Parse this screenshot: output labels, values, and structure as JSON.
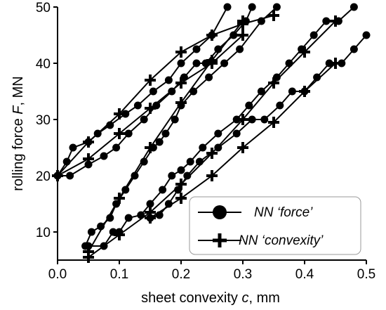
{
  "chart_data": {
    "type": "line",
    "xlabel_prefix": "sheet convexity ",
    "xlabel_var": "c",
    "xlabel_suffix": ", mm",
    "ylabel_prefix": "rolling force ",
    "ylabel_var": "F",
    "ylabel_suffix": ", MN",
    "xlim": [
      0.0,
      0.5
    ],
    "ylim": [
      5,
      50
    ],
    "xticks": [
      0.0,
      0.1,
      0.2,
      0.3,
      0.4,
      0.5
    ],
    "xtick_labels": [
      "0.0",
      "0.1",
      "0.2",
      "0.3",
      "0.4",
      "0.5"
    ],
    "yticks": [
      10,
      20,
      30,
      40,
      50
    ],
    "ytick_labels": [
      "10",
      "20",
      "30",
      "40",
      "50"
    ],
    "grid": false,
    "legend_position": "bottom-right",
    "series": [
      {
        "name": "NN ‘force’",
        "marker": "circle",
        "x": [
          0.0,
          0.015,
          0.025,
          0.05,
          0.065,
          0.085,
          0.11,
          0.13,
          0.155,
          0.18,
          0.2,
          0.225,
          0.25,
          0.275
        ],
        "y": [
          20,
          22.5,
          25,
          26,
          27.5,
          29,
          31,
          32.5,
          35,
          37,
          40,
          42.5,
          45,
          50
        ]
      },
      {
        "name": "NN ‘force’",
        "marker": "circle",
        "x": [
          0.0,
          0.02,
          0.05,
          0.075,
          0.095,
          0.115,
          0.14,
          0.16,
          0.185,
          0.205,
          0.225,
          0.24,
          0.26,
          0.285,
          0.305,
          0.315
        ],
        "y": [
          20,
          20,
          22,
          23.5,
          25,
          27.5,
          30,
          32.5,
          35,
          37.5,
          40,
          40,
          42.5,
          45,
          47.5,
          50
        ]
      },
      {
        "name": "NN ‘force’",
        "marker": "circle",
        "x": [
          0.045,
          0.055,
          0.07,
          0.085,
          0.095,
          0.11,
          0.125,
          0.14,
          0.155,
          0.165,
          0.175,
          0.19,
          0.2,
          0.22,
          0.245,
          0.27,
          0.295,
          0.33,
          0.355
        ],
        "y": [
          7.5,
          10,
          11,
          12.5,
          15,
          17.5,
          20,
          22.5,
          25,
          26,
          27.5,
          30,
          32.5,
          35,
          37.5,
          40,
          42.5,
          47.5,
          50
        ]
      },
      {
        "name": "NN ‘force’",
        "marker": "circle",
        "x": [
          0.05,
          0.075,
          0.09,
          0.1,
          0.115,
          0.135,
          0.15,
          0.17,
          0.185,
          0.2,
          0.215,
          0.235,
          0.26,
          0.29,
          0.31,
          0.33,
          0.355,
          0.375,
          0.395,
          0.415,
          0.435,
          0.455,
          0.48
        ],
        "y": [
          7.5,
          7.5,
          10,
          10,
          12.5,
          13,
          15,
          17.5,
          20,
          21,
          22.5,
          25,
          27.5,
          30,
          32.5,
          35,
          37.5,
          40,
          42.5,
          45,
          47.5,
          47.5,
          50
        ]
      },
      {
        "name": "NN ‘force’",
        "marker": "circle",
        "x": [
          0.15,
          0.165,
          0.18,
          0.195,
          0.21,
          0.23,
          0.26,
          0.29,
          0.315,
          0.335,
          0.36,
          0.38,
          0.4,
          0.42,
          0.44,
          0.46,
          0.48,
          0.5
        ],
        "y": [
          12.5,
          13,
          15,
          17.5,
          20,
          22.5,
          25,
          27.5,
          30,
          30,
          32.5,
          35,
          35,
          37.5,
          40,
          40,
          42.5,
          45
        ]
      },
      {
        "name": "NN ‘convexity’",
        "marker": "plus",
        "x": [
          0.0,
          0.05,
          0.1,
          0.15,
          0.2,
          0.25,
          0.3,
          0.35
        ],
        "y": [
          20,
          26,
          31,
          37,
          42,
          45,
          47,
          48.5
        ]
      },
      {
        "name": "NN ‘convexity’",
        "marker": "plus",
        "x": [
          0.0,
          0.05,
          0.1,
          0.15,
          0.2,
          0.25,
          0.3
        ],
        "y": [
          20,
          23,
          27.5,
          32,
          36.5,
          40,
          45
        ]
      },
      {
        "name": "NN ‘convexity’",
        "marker": "plus",
        "x": [
          0.05,
          0.1,
          0.15,
          0.2,
          0.25,
          0.3
        ],
        "y": [
          6.5,
          16,
          25,
          33,
          40.5,
          47.5
        ]
      },
      {
        "name": "NN ‘convexity’",
        "marker": "plus",
        "x": [
          0.05,
          0.1,
          0.15,
          0.2,
          0.25,
          0.3,
          0.35,
          0.4,
          0.45
        ],
        "y": [
          5.5,
          9.5,
          13.5,
          18.5,
          24,
          30,
          36.5,
          42,
          47.5
        ]
      },
      {
        "name": "NN ‘convexity’",
        "marker": "plus",
        "x": [
          0.15,
          0.2,
          0.25,
          0.3,
          0.35,
          0.4,
          0.45
        ],
        "y": [
          12.5,
          16,
          20,
          25,
          29.5,
          35,
          40
        ]
      }
    ],
    "legend": [
      {
        "label": "NN ‘force’",
        "marker": "circle"
      },
      {
        "label": "NN ‘convexity’",
        "marker": "plus"
      }
    ]
  }
}
